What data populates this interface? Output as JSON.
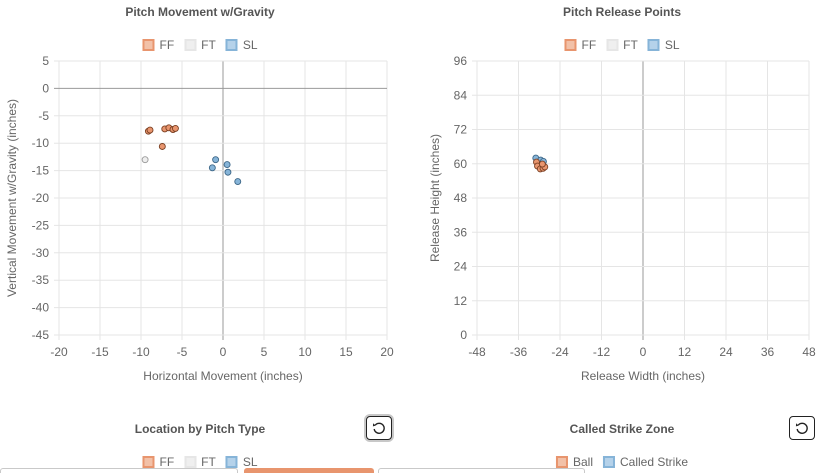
{
  "colors": {
    "FF": "#e8956e",
    "FT": "#e6e6e6",
    "SL": "#86b4d8",
    "grid": "#e5e5e5",
    "zero": "#999999"
  },
  "charts": {
    "movement": {
      "title": "Pitch Movement w/Gravity",
      "legend": [
        "FF",
        "FT",
        "SL"
      ]
    },
    "release": {
      "title": "Pitch Release Points",
      "legend": [
        "FF",
        "FT",
        "SL"
      ]
    },
    "location": {
      "title": "Location by Pitch Type",
      "legend": [
        "FF",
        "FT",
        "SL"
      ]
    },
    "strikezone": {
      "title": "Called Strike Zone",
      "legend": [
        "Ball",
        "Called Strike"
      ]
    }
  },
  "chart_data": [
    {
      "type": "scatter",
      "title": "Pitch Movement w/Gravity",
      "xlabel": "Horizontal Movement (inches)",
      "ylabel": "Vertical Movement w/Gravity (inches)",
      "xlim": [
        -20,
        20
      ],
      "ylim": [
        -45,
        5
      ],
      "xticks": [
        -20,
        -15,
        -10,
        -5,
        0,
        5,
        10,
        15,
        20
      ],
      "yticks": [
        5,
        0,
        -5,
        -10,
        -15,
        -20,
        -25,
        -30,
        -35,
        -40,
        -45
      ],
      "grid": true,
      "legend_position": "top",
      "series": [
        {
          "name": "FF",
          "points": [
            [
              -9.1,
              -7.8
            ],
            [
              -8.9,
              -7.6
            ],
            [
              -7.1,
              -7.4
            ],
            [
              -6.6,
              -7.2
            ],
            [
              -6.1,
              -7.5
            ],
            [
              -5.8,
              -7.3
            ],
            [
              -7.4,
              -10.6
            ]
          ]
        },
        {
          "name": "FT",
          "points": [
            [
              -9.5,
              -13.0
            ]
          ]
        },
        {
          "name": "SL",
          "points": [
            [
              -0.9,
              -13.0
            ],
            [
              -1.3,
              -14.5
            ],
            [
              0.5,
              -13.9
            ],
            [
              0.6,
              -15.3
            ],
            [
              1.8,
              -17.0
            ]
          ]
        }
      ]
    },
    {
      "type": "scatter",
      "title": "Pitch Release Points",
      "xlabel": "Release Width (inches)",
      "ylabel": "Release Height (inches)",
      "xlim": [
        -48,
        48
      ],
      "ylim": [
        0,
        96
      ],
      "xticks": [
        -48,
        -36,
        -24,
        -12,
        0,
        12,
        24,
        36,
        48
      ],
      "yticks": [
        96,
        84,
        72,
        60,
        48,
        36,
        24,
        12,
        0
      ],
      "grid": true,
      "legend_position": "top",
      "series": [
        {
          "name": "SL",
          "points": [
            [
              -31.0,
              62.0
            ],
            [
              -29.6,
              61.3
            ],
            [
              -28.8,
              60.8
            ],
            [
              -30.2,
              59.6
            ]
          ]
        },
        {
          "name": "FF",
          "points": [
            [
              -30.8,
              60.6
            ],
            [
              -30.5,
              59.2
            ],
            [
              -29.7,
              58.2
            ],
            [
              -28.9,
              58.4
            ],
            [
              -28.4,
              58.9
            ],
            [
              -29.1,
              59.9
            ]
          ]
        }
      ]
    }
  ]
}
